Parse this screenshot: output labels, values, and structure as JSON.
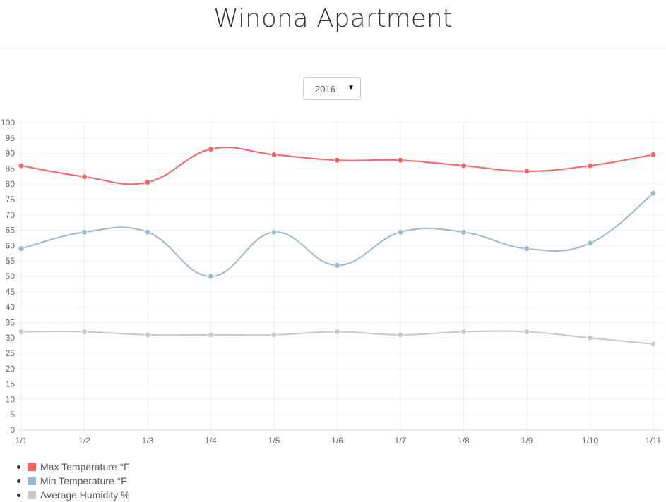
{
  "header": {
    "title": "Winona Apartment"
  },
  "year_select": {
    "value": "2016"
  },
  "chart_data": {
    "type": "line",
    "categories": [
      "1/1",
      "1/2",
      "1/3",
      "1/4",
      "1/5",
      "1/6",
      "1/7",
      "1/8",
      "1/9",
      "1/10",
      "1/11"
    ],
    "ylim": [
      0,
      100
    ],
    "yticks": [
      0,
      5,
      10,
      15,
      20,
      25,
      30,
      35,
      40,
      45,
      50,
      55,
      60,
      65,
      70,
      75,
      80,
      85,
      90,
      95,
      100
    ],
    "grid": true,
    "legend_placement": "bottom-left",
    "series": [
      {
        "name": "Max Temperature °F",
        "color": "#ff6161",
        "values": [
          86,
          82.4,
          80.6,
          91.4,
          89.6,
          87.8,
          87.8,
          86,
          84.2,
          86,
          89.6
        ]
      },
      {
        "name": "Min Temperature °F",
        "color": "#97bbcd",
        "values": [
          59,
          64.4,
          64.4,
          50,
          64.4,
          53.6,
          64.4,
          64.4,
          59,
          60.8,
          77
        ]
      },
      {
        "name": "Average Humidity %",
        "color": "#c8c8c8",
        "values": [
          32,
          32,
          31,
          31,
          31,
          32,
          31,
          32,
          32,
          30,
          28
        ]
      }
    ]
  }
}
